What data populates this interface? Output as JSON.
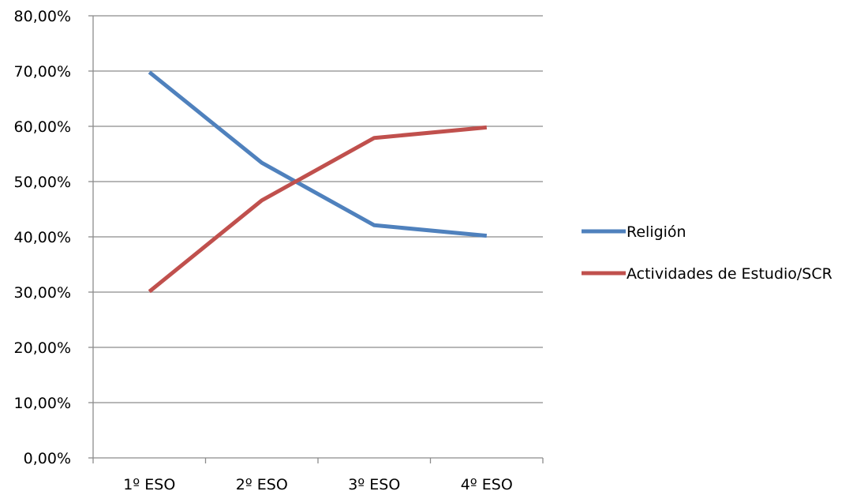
{
  "chart_data": {
    "type": "line",
    "categories": [
      "1º ESO",
      "2º ESO",
      "3º ESO",
      "4º ESO"
    ],
    "series": [
      {
        "name": "Religión",
        "values": [
          0.698,
          0.534,
          0.421,
          0.402
        ],
        "color": "#4f81bd"
      },
      {
        "name": "Actividades de Estudio/SCR",
        "values": [
          0.301,
          0.466,
          0.579,
          0.598
        ],
        "color": "#c0504d"
      }
    ],
    "y_ticks": [
      "0,00%",
      "10,00%",
      "20,00%",
      "30,00%",
      "40,00%",
      "50,00%",
      "60,00%",
      "70,00%",
      "80,00%"
    ],
    "ylim": [
      0,
      0.8
    ],
    "grid": true,
    "legend_position": "right",
    "title": "",
    "xlabel": "",
    "ylabel": ""
  }
}
